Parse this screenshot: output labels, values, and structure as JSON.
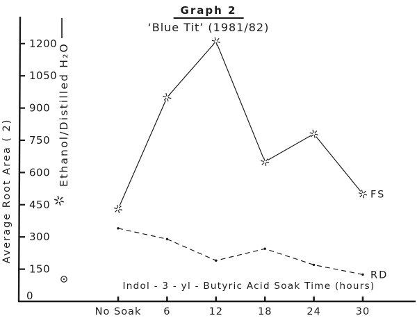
{
  "figure": {
    "title": "Graph 2",
    "subtitle": "‘Blue Tit’ (1981/82)"
  },
  "chart_data": {
    "type": "line",
    "title": "Graph 2",
    "subtitle": "‘Blue Tit’ (1981/82)",
    "xlabel": "Indol - 3 - yl - Butyric Acid Soak Time (hours)",
    "ylabel": "Average Root Area (  2)",
    "categories": [
      "No Soak",
      "6",
      "12",
      "18",
      "24",
      "30"
    ],
    "y_ticks": [
      150,
      300,
      450,
      600,
      750,
      900,
      1050,
      1200
    ],
    "y_zero_label": "0",
    "ylim": [
      0,
      1250
    ],
    "grid": false,
    "legend": {
      "position": "left, rotated vertical",
      "entries": [
        {
          "marker": "dotted-star-icon",
          "label": "Ethanol/Distilled H₂O"
        },
        {
          "marker": "circle-dot-icon",
          "label": ""
        }
      ]
    },
    "series": [
      {
        "name": "FS",
        "line_style": "solid",
        "marker": "dotted-star",
        "values": [
          430,
          950,
          1210,
          650,
          780,
          500
        ]
      },
      {
        "name": "RD",
        "line_style": "dashed",
        "marker": "dot",
        "values": [
          340,
          290,
          190,
          245,
          170,
          125
        ]
      }
    ]
  },
  "colors": {
    "ink": "#1c1c1c",
    "paper": "#ffffff"
  }
}
